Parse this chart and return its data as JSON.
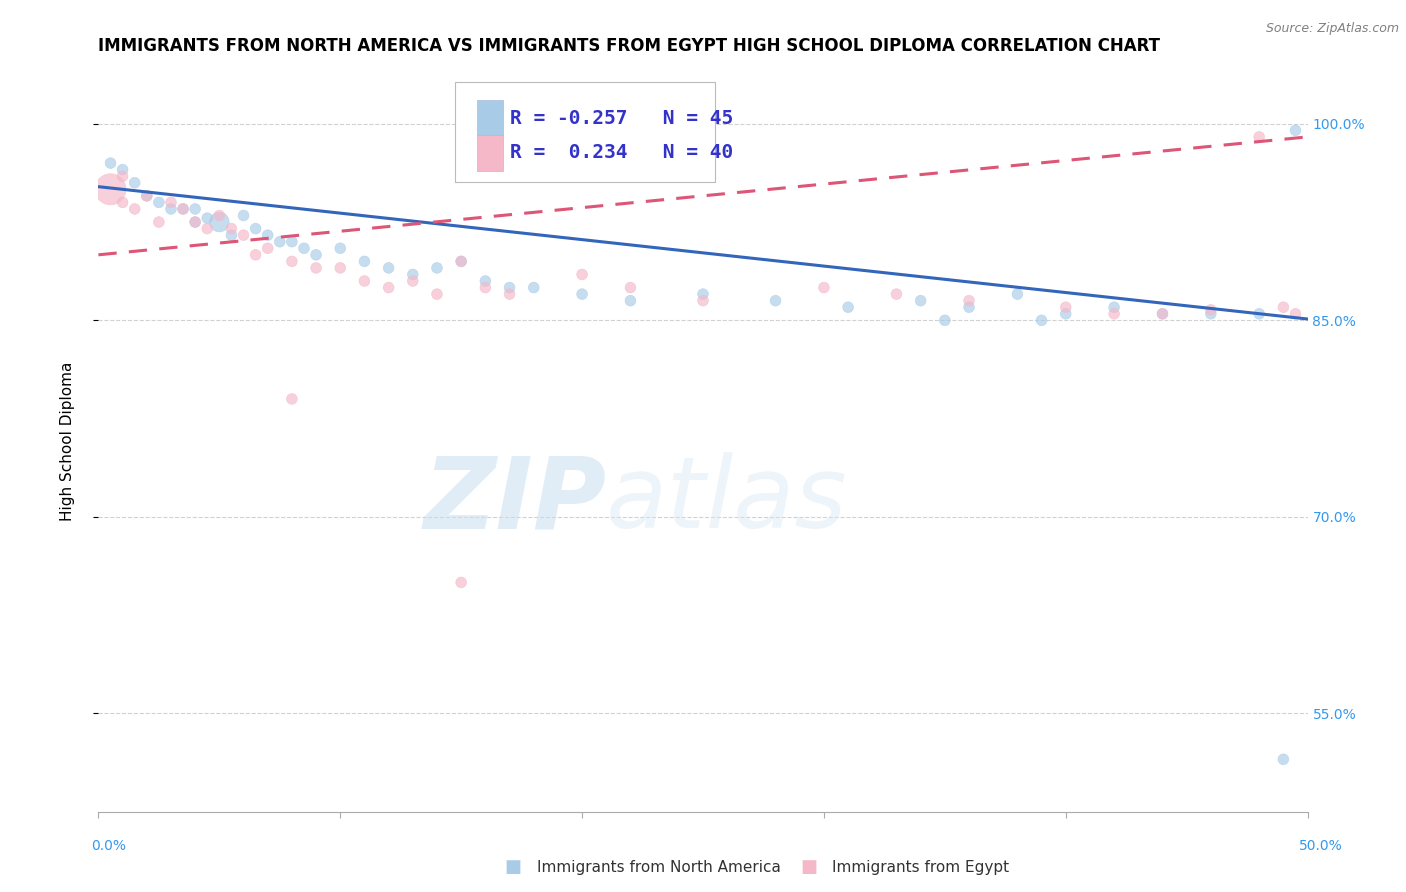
{
  "title": "IMMIGRANTS FROM NORTH AMERICA VS IMMIGRANTS FROM EGYPT HIGH SCHOOL DIPLOMA CORRELATION CHART",
  "source": "Source: ZipAtlas.com",
  "ylabel": "High School Diploma",
  "ytick_labels": [
    "100.0%",
    "85.0%",
    "70.0%",
    "55.0%"
  ],
  "ytick_values": [
    1.0,
    0.85,
    0.7,
    0.55
  ],
  "xlim": [
    0.0,
    0.5
  ],
  "ylim": [
    0.475,
    1.04
  ],
  "blue_color": "#a8cce8",
  "pink_color": "#f4b8c8",
  "blue_line_color": "#3366bb",
  "pink_line_color": "#dd5577",
  "watermark_zip": "ZIP",
  "watermark_atlas": "atlas",
  "blue_scatter_x": [
    0.005,
    0.01,
    0.015,
    0.02,
    0.025,
    0.03,
    0.035,
    0.04,
    0.04,
    0.045,
    0.05,
    0.055,
    0.06,
    0.065,
    0.07,
    0.075,
    0.08,
    0.085,
    0.09,
    0.1,
    0.11,
    0.12,
    0.13,
    0.14,
    0.15,
    0.16,
    0.17,
    0.18,
    0.2,
    0.22,
    0.25,
    0.28,
    0.31,
    0.34,
    0.35,
    0.36,
    0.38,
    0.39,
    0.4,
    0.42,
    0.44,
    0.46,
    0.48,
    0.49,
    0.495
  ],
  "blue_scatter_y": [
    0.97,
    0.965,
    0.955,
    0.945,
    0.94,
    0.935,
    0.935,
    0.935,
    0.925,
    0.928,
    0.925,
    0.915,
    0.93,
    0.92,
    0.915,
    0.91,
    0.91,
    0.905,
    0.9,
    0.905,
    0.895,
    0.89,
    0.885,
    0.89,
    0.895,
    0.88,
    0.875,
    0.875,
    0.87,
    0.865,
    0.87,
    0.865,
    0.86,
    0.865,
    0.85,
    0.86,
    0.87,
    0.85,
    0.855,
    0.86,
    0.855,
    0.855,
    0.855,
    0.515,
    0.995
  ],
  "blue_scatter_sizes": [
    60,
    60,
    60,
    60,
    60,
    60,
    60,
    60,
    60,
    60,
    200,
    60,
    60,
    60,
    60,
    60,
    60,
    60,
    60,
    60,
    60,
    60,
    60,
    60,
    60,
    60,
    60,
    60,
    60,
    60,
    60,
    60,
    60,
    60,
    60,
    60,
    60,
    60,
    60,
    60,
    60,
    60,
    60,
    60,
    60
  ],
  "pink_scatter_x": [
    0.005,
    0.01,
    0.01,
    0.015,
    0.02,
    0.025,
    0.03,
    0.035,
    0.04,
    0.045,
    0.05,
    0.055,
    0.06,
    0.065,
    0.07,
    0.08,
    0.09,
    0.1,
    0.11,
    0.12,
    0.13,
    0.14,
    0.15,
    0.16,
    0.17,
    0.2,
    0.22,
    0.25,
    0.3,
    0.33,
    0.36,
    0.4,
    0.42,
    0.44,
    0.46,
    0.48,
    0.49,
    0.495,
    0.15,
    0.08
  ],
  "pink_scatter_y": [
    0.95,
    0.94,
    0.96,
    0.935,
    0.945,
    0.925,
    0.94,
    0.935,
    0.925,
    0.92,
    0.93,
    0.92,
    0.915,
    0.9,
    0.905,
    0.895,
    0.89,
    0.89,
    0.88,
    0.875,
    0.88,
    0.87,
    0.895,
    0.875,
    0.87,
    0.885,
    0.875,
    0.865,
    0.875,
    0.87,
    0.865,
    0.86,
    0.855,
    0.855,
    0.858,
    0.99,
    0.86,
    0.855,
    0.65,
    0.79
  ],
  "pink_scatter_sizes": [
    500,
    60,
    60,
    60,
    60,
    60,
    60,
    60,
    60,
    60,
    60,
    60,
    60,
    60,
    60,
    60,
    60,
    60,
    60,
    60,
    60,
    60,
    60,
    60,
    60,
    60,
    60,
    60,
    60,
    60,
    60,
    60,
    60,
    60,
    60,
    60,
    60,
    60,
    60,
    60
  ],
  "blue_trend_x": [
    0.0,
    0.5
  ],
  "blue_trend_y": [
    0.952,
    0.851
  ],
  "pink_trend_x": [
    0.0,
    0.5
  ],
  "pink_trend_y": [
    0.9,
    0.99
  ],
  "pink_trend_dash": true,
  "grid_color": "#cccccc",
  "title_fontsize": 12,
  "axis_label_fontsize": 11,
  "tick_fontsize": 10,
  "legend_fontsize": 14,
  "xtick_positions": [
    0.0,
    0.1,
    0.2,
    0.3,
    0.4,
    0.5
  ],
  "bottom_legend_blue_label": "Immigrants from North America",
  "bottom_legend_pink_label": "Immigrants from Egypt"
}
